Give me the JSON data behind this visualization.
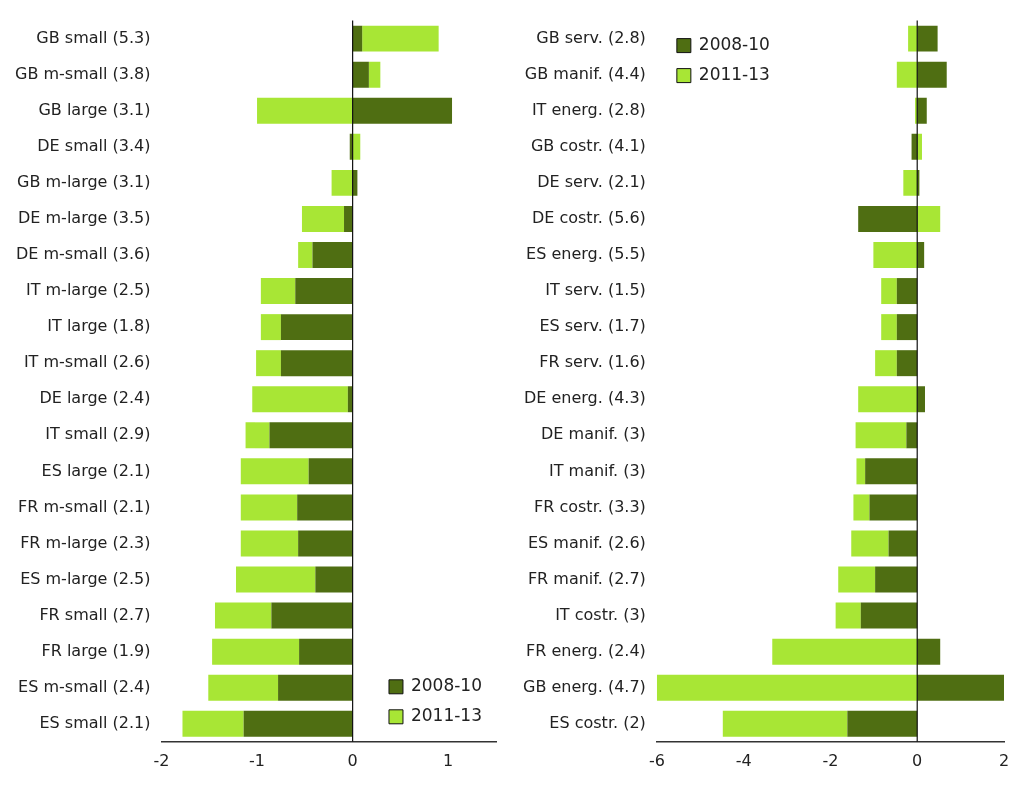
{
  "chart_data": [
    {
      "type": "bar",
      "orientation": "horizontal",
      "stacked": true,
      "legend": "bottom right",
      "xlim": [
        -2,
        1.5
      ],
      "xticks": [
        -2,
        -1,
        0,
        1
      ],
      "categories": [
        "GB small (5.3)",
        "GB m-small (3.8)",
        "GB large (3.1)",
        "DE small (3.4)",
        "GB m-large (3.1)",
        "DE m-large (3.5)",
        "DE m-small (3.6)",
        "IT m-large (2.5)",
        "IT large (1.8)",
        "IT m-small (2.6)",
        "DE large (2.4)",
        "IT small (2.9)",
        "ES large (2.1)",
        "FR m-small (2.1)",
        "FR m-large (2.3)",
        "ES m-large (2.5)",
        "FR small (2.7)",
        "FR large (1.9)",
        "ES m-small (2.4)",
        "ES small (2.1)"
      ],
      "series": [
        {
          "name": "2008-10",
          "color": "#4f6e12",
          "values": [
            0.1,
            0.17,
            1.04,
            -0.03,
            0.05,
            -0.09,
            -0.42,
            -0.6,
            -0.75,
            -0.75,
            -0.05,
            -0.87,
            -0.46,
            -0.58,
            -0.57,
            -0.39,
            -0.85,
            -0.56,
            -0.78,
            -1.14
          ]
        },
        {
          "name": "2011-13",
          "color": "#a8e635",
          "values": [
            0.8,
            0.12,
            -1.0,
            0.08,
            -0.22,
            -0.44,
            -0.15,
            -0.36,
            -0.21,
            -0.26,
            -1.0,
            -0.25,
            -0.71,
            -0.59,
            -0.6,
            -0.83,
            -0.59,
            -0.91,
            -0.73,
            -0.64
          ]
        }
      ]
    },
    {
      "type": "bar",
      "orientation": "horizontal",
      "stacked": true,
      "legend": "top left",
      "xlim": [
        -6,
        2
      ],
      "xticks": [
        -6,
        -4,
        -2,
        0,
        2
      ],
      "categories": [
        "GB serv. (2.8)",
        "GB manif. (4.4)",
        "IT energ. (2.8)",
        "GB costr. (4.1)",
        "DE serv. (2.1)",
        "DE costr. (5.6)",
        "ES energ. (5.5)",
        "IT serv. (1.5)",
        "ES serv. (1.7)",
        "FR serv. (1.6)",
        "DE energ. (4.3)",
        "DE manif. (3)",
        "IT manif. (3)",
        "FR costr. (3.3)",
        "ES manif. (2.6)",
        "FR manif. (2.7)",
        "IT costr. (3)",
        "FR energ. (2.4)",
        "GB energ. (4.7)",
        "ES costr. (2)"
      ],
      "series": [
        {
          "name": "2008-10",
          "color": "#4f6e12",
          "values": [
            0.47,
            0.68,
            0.22,
            -0.13,
            0.05,
            -1.36,
            0.16,
            -0.47,
            -0.47,
            -0.47,
            0.18,
            -0.25,
            -1.2,
            -1.1,
            -0.66,
            -0.97,
            -1.3,
            0.53,
            2.0,
            -1.61
          ]
        },
        {
          "name": "2011-13",
          "color": "#a8e635",
          "values": [
            -0.21,
            -0.47,
            -0.05,
            0.11,
            -0.32,
            0.53,
            -1.01,
            -0.36,
            -0.36,
            -0.5,
            -1.36,
            -1.17,
            -0.2,
            -0.37,
            -0.86,
            -0.85,
            -0.58,
            -3.34,
            -6.0,
            -2.87
          ]
        }
      ]
    }
  ]
}
